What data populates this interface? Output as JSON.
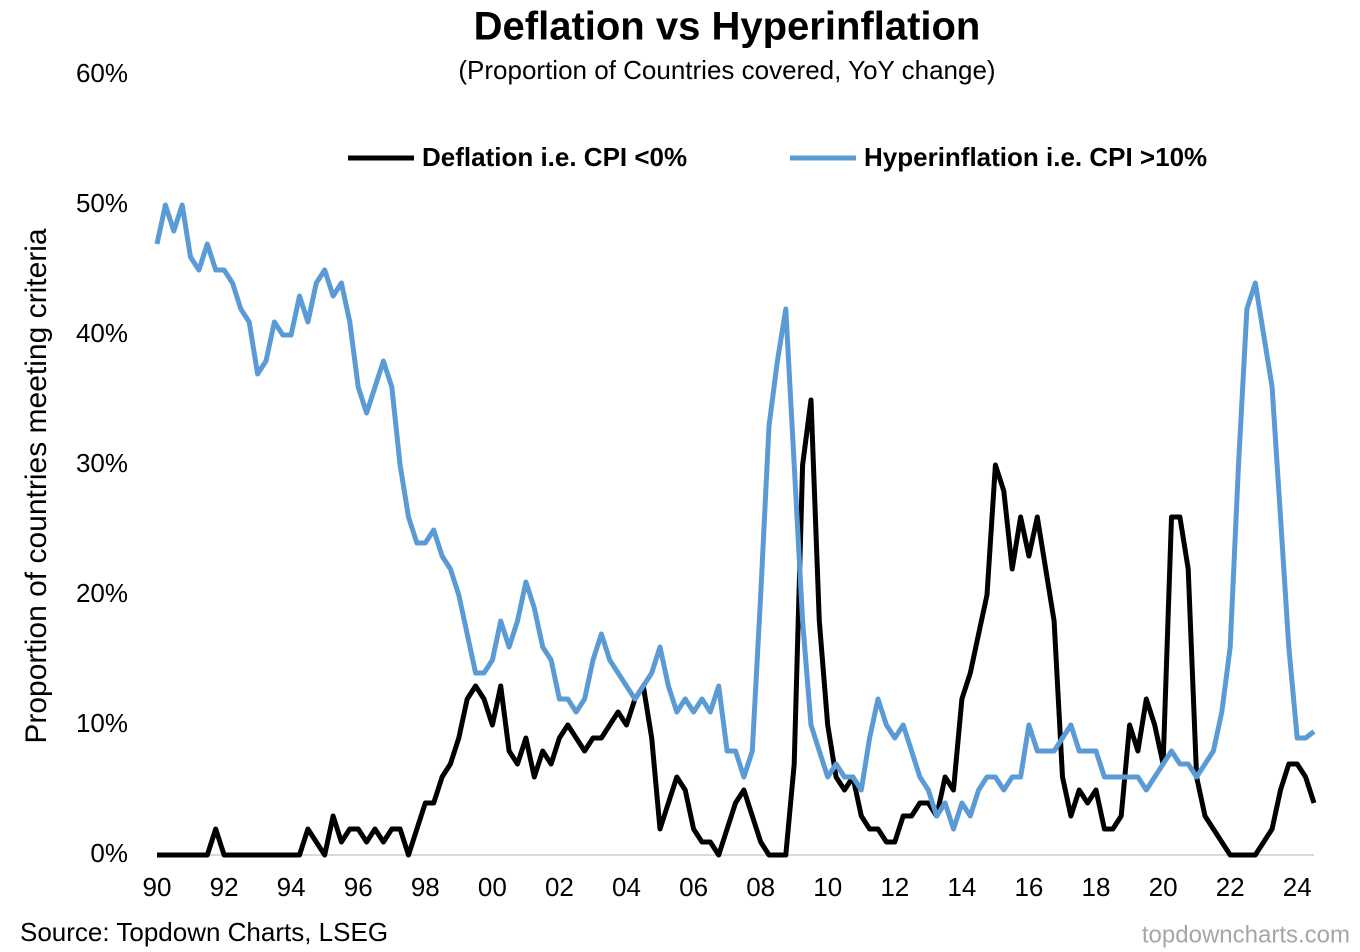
{
  "chart_data": {
    "type": "line",
    "title": "Deflation vs Hyperinflation",
    "subtitle": "(Proportion of Countries covered, YoY change)",
    "y_label": "Proportion of countries meeting criteria",
    "source": "Source: Topdown Charts, LSEG",
    "watermark": "topdowncharts.com",
    "x": [
      1990,
      1990.25,
      1990.5,
      1990.75,
      1991,
      1991.25,
      1991.5,
      1991.75,
      1992,
      1992.25,
      1992.5,
      1992.75,
      1993,
      1993.25,
      1993.5,
      1993.75,
      1994,
      1994.25,
      1994.5,
      1994.75,
      1995,
      1995.25,
      1995.5,
      1995.75,
      1996,
      1996.25,
      1996.5,
      1996.75,
      1997,
      1997.25,
      1997.5,
      1997.75,
      1998,
      1998.25,
      1998.5,
      1998.75,
      1999,
      1999.25,
      1999.5,
      1999.75,
      2000,
      2000.25,
      2000.5,
      2000.75,
      2001,
      2001.25,
      2001.5,
      2001.75,
      2002,
      2002.25,
      2002.5,
      2002.75,
      2003,
      2003.25,
      2003.5,
      2003.75,
      2004,
      2004.25,
      2004.5,
      2004.75,
      2005,
      2005.25,
      2005.5,
      2005.75,
      2006,
      2006.25,
      2006.5,
      2006.75,
      2007,
      2007.25,
      2007.5,
      2007.75,
      2008,
      2008.25,
      2008.5,
      2008.75,
      2009,
      2009.25,
      2009.5,
      2009.75,
      2010,
      2010.25,
      2010.5,
      2010.75,
      2011,
      2011.25,
      2011.5,
      2011.75,
      2012,
      2012.25,
      2012.5,
      2012.75,
      2013,
      2013.25,
      2013.5,
      2013.75,
      2014,
      2014.25,
      2014.5,
      2014.75,
      2015,
      2015.25,
      2015.5,
      2015.75,
      2016,
      2016.25,
      2016.5,
      2016.75,
      2017,
      2017.25,
      2017.5,
      2017.75,
      2018,
      2018.25,
      2018.5,
      2018.75,
      2019,
      2019.25,
      2019.5,
      2019.75,
      2020,
      2020.25,
      2020.5,
      2020.75,
      2021,
      2021.25,
      2021.5,
      2021.75,
      2022,
      2022.25,
      2022.5,
      2022.75,
      2023,
      2023.25,
      2023.5,
      2023.75,
      2024,
      2024.25,
      2024.5
    ],
    "series": [
      {
        "name": "Deflation i.e. CPI <0%",
        "color": "#000000",
        "values": [
          0,
          0,
          0,
          0,
          0,
          0,
          0,
          2,
          0,
          0,
          0,
          0,
          0,
          0,
          0,
          0,
          0,
          0,
          2,
          1,
          0,
          3,
          1,
          2,
          2,
          1,
          2,
          1,
          2,
          2,
          0,
          2,
          4,
          4,
          6,
          7,
          9,
          12,
          13,
          12,
          10,
          13,
          8,
          7,
          9,
          6,
          8,
          7,
          9,
          10,
          9,
          8,
          9,
          9,
          10,
          11,
          10,
          12,
          13,
          9,
          2,
          4,
          6,
          5,
          2,
          1,
          1,
          0,
          2,
          4,
          5,
          3,
          1,
          0,
          0,
          0,
          7,
          30,
          35,
          18,
          10,
          6,
          5,
          6,
          3,
          2,
          2,
          1,
          1,
          3,
          3,
          4,
          4,
          3,
          6,
          5,
          12,
          14,
          17,
          20,
          30,
          28,
          22,
          26,
          23,
          26,
          22,
          18,
          6,
          3,
          5,
          4,
          5,
          2,
          2,
          3,
          10,
          8,
          12,
          10,
          7,
          26,
          26,
          22,
          6,
          3,
          2,
          1,
          0,
          0,
          0,
          0,
          1,
          2,
          5,
          7,
          7,
          6,
          4
        ]
      },
      {
        "name": "Hyperinflation i.e. CPI >10%",
        "color": "#5b9bd5",
        "values": [
          47,
          50,
          48,
          50,
          46,
          45,
          47,
          45,
          45,
          44,
          42,
          41,
          37,
          38,
          41,
          40,
          40,
          43,
          41,
          44,
          45,
          43,
          44,
          41,
          36,
          34,
          36,
          38,
          36,
          30,
          26,
          24,
          24,
          25,
          23,
          22,
          20,
          17,
          14,
          14,
          15,
          18,
          16,
          18,
          21,
          19,
          16,
          15,
          12,
          12,
          11,
          12,
          15,
          17,
          15,
          14,
          13,
          12,
          13,
          14,
          16,
          13,
          11,
          12,
          11,
          12,
          11,
          13,
          8,
          8,
          6,
          8,
          20,
          33,
          38,
          42,
          30,
          18,
          10,
          8,
          6,
          7,
          6,
          6,
          5,
          9,
          12,
          10,
          9,
          10,
          8,
          6,
          5,
          3,
          4,
          2,
          4,
          3,
          5,
          6,
          6,
          5,
          6,
          6,
          10,
          8,
          8,
          8,
          9,
          10,
          8,
          8,
          8,
          6,
          6,
          6,
          6,
          6,
          5,
          6,
          7,
          8,
          7,
          7,
          6,
          7,
          8,
          11,
          16,
          30,
          42,
          44,
          40,
          36,
          26,
          16,
          9,
          9,
          9.5
        ]
      }
    ],
    "xlim": [
      1990,
      2024.5
    ],
    "xticks": [
      {
        "value": 1990,
        "label": "90"
      },
      {
        "value": 1992,
        "label": "92"
      },
      {
        "value": 1994,
        "label": "94"
      },
      {
        "value": 1996,
        "label": "96"
      },
      {
        "value": 1998,
        "label": "98"
      },
      {
        "value": 2000,
        "label": "00"
      },
      {
        "value": 2002,
        "label": "02"
      },
      {
        "value": 2004,
        "label": "04"
      },
      {
        "value": 2006,
        "label": "06"
      },
      {
        "value": 2008,
        "label": "08"
      },
      {
        "value": 2010,
        "label": "10"
      },
      {
        "value": 2012,
        "label": "12"
      },
      {
        "value": 2014,
        "label": "14"
      },
      {
        "value": 2016,
        "label": "16"
      },
      {
        "value": 2018,
        "label": "18"
      },
      {
        "value": 2020,
        "label": "20"
      },
      {
        "value": 2022,
        "label": "22"
      },
      {
        "value": 2024,
        "label": "24"
      }
    ],
    "ylim": [
      0,
      60
    ],
    "yticks": [
      {
        "value": 0,
        "label": "0%"
      },
      {
        "value": 10,
        "label": "10%"
      },
      {
        "value": 20,
        "label": "20%"
      },
      {
        "value": 30,
        "label": "30%"
      },
      {
        "value": 40,
        "label": "40%"
      },
      {
        "value": 50,
        "label": "50%"
      },
      {
        "value": 60,
        "label": "60%"
      }
    ]
  }
}
